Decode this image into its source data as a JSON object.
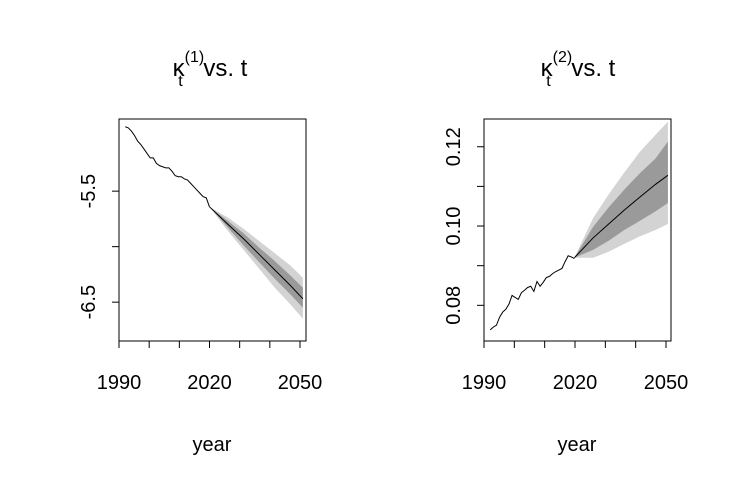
{
  "colors": {
    "line": "#000000",
    "band_outer": "#d3d3d3",
    "band_inner": "#9a9a9a",
    "frame": "#000000"
  },
  "chart_data": [
    {
      "type": "line",
      "title": {
        "base": "κ",
        "sub": "t",
        "sup": "(1)",
        "rest": " vs. t"
      },
      "xlabel": "year",
      "ylabel": "",
      "xlim": [
        1990,
        2050
      ],
      "ylim": [
        -6.85,
        -4.85
      ],
      "xticks": [
        1990,
        2000,
        2010,
        2020,
        2030,
        2040,
        2050
      ],
      "xtick_labels": [
        "1990",
        "",
        "",
        "2020",
        "",
        "",
        "2050"
      ],
      "yticks": [
        -5.5,
        -6,
        -6.5
      ],
      "ytick_labels": [
        "-5.5",
        "",
        "-6.5"
      ],
      "grid": false,
      "observed": {
        "x": [
          1992,
          1993,
          1994,
          1995,
          1996,
          1997,
          1998,
          1999,
          2000,
          2001,
          2002,
          2003,
          2004,
          2005,
          2006,
          2007,
          2008,
          2009,
          2010,
          2011,
          2012,
          2013,
          2014,
          2015,
          2016,
          2017,
          2018,
          2019
        ],
        "y": [
          -4.92,
          -4.93,
          -4.96,
          -5.0,
          -5.05,
          -5.08,
          -5.12,
          -5.16,
          -5.2,
          -5.2,
          -5.25,
          -5.27,
          -5.28,
          -5.29,
          -5.29,
          -5.32,
          -5.36,
          -5.37,
          -5.37,
          -5.39,
          -5.4,
          -5.43,
          -5.46,
          -5.49,
          -5.52,
          -5.55,
          -5.56,
          -5.64
        ]
      },
      "forecast": {
        "x": [
          2019,
          2025,
          2030,
          2035,
          2040,
          2045,
          2049
        ],
        "median": [
          -5.64,
          -5.8,
          -5.93,
          -6.07,
          -6.21,
          -6.35,
          -6.47
        ],
        "lower_inner": [
          -5.64,
          -5.83,
          -5.99,
          -6.14,
          -6.29,
          -6.43,
          -6.55
        ],
        "upper_inner": [
          -5.64,
          -5.77,
          -5.88,
          -6.01,
          -6.13,
          -6.26,
          -6.37
        ],
        "lower_outer": [
          -5.64,
          -5.86,
          -6.03,
          -6.2,
          -6.37,
          -6.52,
          -6.65
        ],
        "upper_outer": [
          -5.64,
          -5.74,
          -5.84,
          -5.95,
          -6.06,
          -6.17,
          -6.28
        ]
      }
    },
    {
      "type": "line",
      "title": {
        "base": "κ",
        "sub": "t",
        "sup": "(2)",
        "rest": " vs. t"
      },
      "xlabel": "year",
      "ylabel": "",
      "xlim": [
        1990,
        2050
      ],
      "ylim": [
        0.071,
        0.127
      ],
      "xticks": [
        1990,
        2000,
        2010,
        2020,
        2030,
        2040,
        2050
      ],
      "xtick_labels": [
        "1990",
        "",
        "",
        "2020",
        "",
        "",
        "2050"
      ],
      "yticks": [
        0.08,
        0.09,
        0.1,
        0.11,
        0.12
      ],
      "ytick_labels": [
        "0.08",
        "",
        "0.10",
        "",
        "0.12"
      ],
      "grid": false,
      "observed": {
        "x": [
          1992,
          1993,
          1994,
          1995,
          1996,
          1997,
          1998,
          1999,
          2000,
          2001,
          2002,
          2003,
          2004,
          2005,
          2006,
          2007,
          2008,
          2009,
          2010,
          2011,
          2012,
          2013,
          2014,
          2015,
          2016,
          2017,
          2018,
          2019
        ],
        "y": [
          0.0738,
          0.0745,
          0.075,
          0.077,
          0.0783,
          0.079,
          0.0803,
          0.0825,
          0.082,
          0.0815,
          0.0832,
          0.0838,
          0.0845,
          0.0848,
          0.0835,
          0.086,
          0.0848,
          0.0858,
          0.087,
          0.0873,
          0.088,
          0.0885,
          0.0889,
          0.0893,
          0.091,
          0.0925,
          0.0922,
          0.0918
        ]
      },
      "forecast": {
        "x": [
          2019,
          2025,
          2030,
          2035,
          2040,
          2045,
          2049
        ],
        "median": [
          0.092,
          0.097,
          0.1005,
          0.104,
          0.1073,
          0.1105,
          0.1128
        ],
        "lower_inner": [
          0.092,
          0.094,
          0.0963,
          0.099,
          0.1013,
          0.1037,
          0.1058
        ],
        "upper_inner": [
          0.092,
          0.0998,
          0.1047,
          0.1092,
          0.1133,
          0.117,
          0.1213
        ],
        "lower_outer": [
          0.092,
          0.092,
          0.0935,
          0.0955,
          0.0974,
          0.099,
          0.1005
        ],
        "upper_outer": [
          0.092,
          0.102,
          0.108,
          0.1135,
          0.1187,
          0.123,
          0.1263
        ]
      }
    }
  ]
}
